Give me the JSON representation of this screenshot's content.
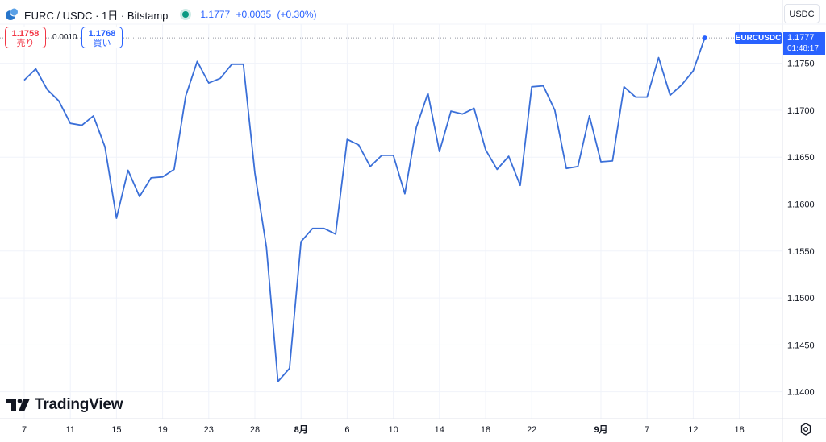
{
  "header": {
    "symbol_title": "EURC / USDC · 1日 · Bitstamp",
    "last_price": "1.1777",
    "change": "+0.0035",
    "change_pct": "(+0.30%)"
  },
  "trade": {
    "sell_price": "1.1758",
    "sell_label": "売り",
    "spread": "0.0010",
    "buy_price": "1.1768",
    "buy_label": "買い"
  },
  "currency_button": "USDC",
  "price_tag": {
    "symbol": "EURCUSDC",
    "price": "1.1777",
    "countdown": "01:48:17"
  },
  "logo_text": "TradingView",
  "colors": {
    "line": "#3a6fd8",
    "accent": "#2962ff",
    "sell": "#f23645",
    "status": "#089981"
  },
  "icons": {
    "symbol": "coin-pair-icon",
    "status": "market-open-dot-icon",
    "settings": "settings-gear-icon",
    "logo": "tradingview-logo-icon"
  },
  "chart_data": {
    "type": "line",
    "series": [
      {
        "values": [
          1.1732,
          1.1744,
          1.1722,
          1.171,
          1.1686,
          1.1684,
          1.1694,
          1.1661,
          1.1585,
          1.1636,
          1.1608,
          1.1628,
          1.1629,
          1.1637,
          1.1715,
          1.1752,
          1.1729,
          1.1734,
          1.1749,
          1.1749,
          1.1633,
          1.1554,
          1.1411,
          1.1425,
          1.156,
          1.1574,
          1.1574,
          1.1568,
          1.1669,
          1.1663,
          1.164,
          1.1652,
          1.1652,
          1.1611,
          1.1682,
          1.1718,
          1.1656,
          1.1699,
          1.1696,
          1.1702,
          1.1658,
          1.1637,
          1.1651,
          1.162,
          1.1725,
          1.1726,
          1.17,
          1.1638,
          1.164,
          1.1694,
          1.1645,
          1.1646,
          1.1725,
          1.1714,
          1.1714,
          1.1756,
          1.1716,
          1.1727,
          1.1742,
          1.1777
        ]
      }
    ],
    "x_ticks": [
      "7",
      "11",
      "15",
      "19",
      "23",
      "28",
      "8月",
      "6",
      "10",
      "14",
      "18",
      "22",
      "9月",
      "7",
      "12",
      "18"
    ],
    "x_tick_index": [
      0,
      4,
      8,
      12,
      16,
      20,
      24,
      28,
      32,
      36,
      40,
      44,
      50,
      54,
      58,
      62
    ],
    "x_count": 64,
    "y_ticks": [
      1.175,
      1.17,
      1.165,
      1.16,
      1.155,
      1.15,
      1.145,
      1.14
    ],
    "ylim": [
      1.138,
      1.179
    ],
    "last_value_dotted_line": true,
    "grid": true
  }
}
